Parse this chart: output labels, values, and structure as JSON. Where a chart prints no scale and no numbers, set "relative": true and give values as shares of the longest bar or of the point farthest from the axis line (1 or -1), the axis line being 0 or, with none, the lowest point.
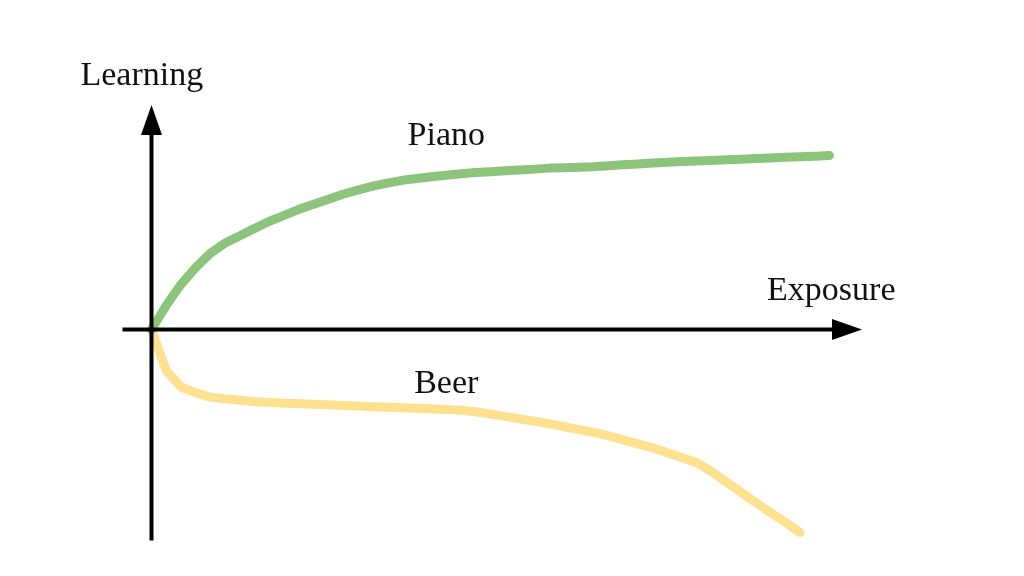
{
  "chart_data": {
    "type": "line",
    "relative": true,
    "xlabel": "Exposure",
    "ylabel": "Learning",
    "categories": [
      null,
      null,
      null,
      null,
      null,
      null,
      null,
      null,
      null,
      null,
      null,
      null,
      null,
      null,
      null,
      null,
      null,
      null,
      null,
      null,
      null,
      null,
      null,
      null,
      null,
      null,
      null,
      null,
      null,
      null,
      null,
      null,
      null,
      null,
      null,
      null,
      null,
      null,
      null,
      null,
      null,
      null,
      null,
      null,
      null,
      null,
      null
    ],
    "series": [
      {
        "name": "Piano",
        "color": "#8dc47b",
        "values": [
          0,
          0.118,
          0.222,
          0.305,
          0.376,
          0.426,
          0.462,
          0.498,
          0.533,
          0.562,
          0.592,
          0.617,
          0.642,
          0.666,
          0.687,
          0.706,
          0.721,
          0.735,
          0.744,
          0.752,
          0.76,
          0.767,
          0.773,
          0.777,
          0.782,
          0.786,
          0.79,
          0.795,
          0.797,
          0.799,
          0.802,
          0.807,
          0.811,
          0.815,
          0.82,
          0.824,
          0.827,
          0.83,
          0.833,
          0.836,
          0.839,
          0.842,
          0.845,
          0.848,
          0.851,
          0.854,
          0.857
        ]
      },
      {
        "name": "Beer",
        "color": "#fde18e",
        "values": [
          0,
          -0.203,
          -0.282,
          -0.312,
          -0.333,
          -0.341,
          -0.349,
          -0.356,
          -0.359,
          -0.363,
          -0.366,
          -0.368,
          -0.371,
          -0.374,
          -0.377,
          -0.38,
          -0.383,
          -0.385,
          -0.388,
          -0.39,
          -0.394,
          -0.398,
          -0.405,
          -0.416,
          -0.428,
          -0.44,
          -0.452,
          -0.465,
          -0.479,
          -0.493,
          -0.507,
          -0.524,
          -0.544,
          -0.563,
          -0.583,
          -0.607,
          -0.632,
          -0.656,
          -0.7,
          -0.751,
          -0.802,
          -0.853,
          -0.902,
          -0.95,
          -1,
          null,
          null
        ]
      }
    ]
  }
}
